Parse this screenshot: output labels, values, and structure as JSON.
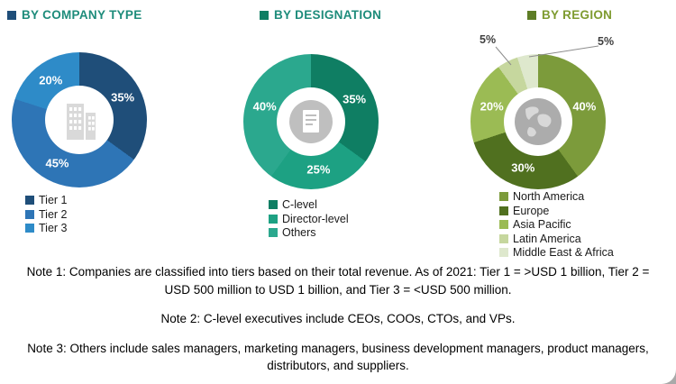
{
  "chart_data": [
    {
      "type": "pie",
      "donut": true,
      "title": "BY COMPANY TYPE",
      "title_color": "#1E8C7B",
      "bullet_color": "#1F4E79",
      "center_icon": "building-icon",
      "categories": [
        "Tier 1",
        "Tier 2",
        "Tier 3"
      ],
      "values": [
        35,
        45,
        20
      ],
      "labels": [
        "35%",
        "45%",
        "20%"
      ],
      "colors": [
        "#1F4E79",
        "#2E75B6",
        "#2E8BC8"
      ],
      "legend_position": "bottom-left"
    },
    {
      "type": "pie",
      "donut": true,
      "title": "BY DESIGNATION",
      "title_color": "#1E8C7B",
      "bullet_color": "#0F7E63",
      "center_icon": "document-icon",
      "categories": [
        "C-level",
        "Director-level",
        "Others"
      ],
      "values": [
        35,
        25,
        40
      ],
      "labels": [
        "35%",
        "25%",
        "40%"
      ],
      "colors": [
        "#0F7E63",
        "#1DA183",
        "#2BA88E"
      ],
      "legend_position": "bottom-left"
    },
    {
      "type": "pie",
      "donut": true,
      "title": "BY REGION",
      "title_color": "#7E9B30",
      "bullet_color": "#5E7D26",
      "center_icon": "globe-icon",
      "categories": [
        "North America",
        "Europe",
        "Asia Pacific",
        "Latin America",
        "Middle East & Africa"
      ],
      "values": [
        40,
        30,
        20,
        5,
        5
      ],
      "labels": [
        "40%",
        "30%",
        "20%",
        "5%",
        "5%"
      ],
      "colors": [
        "#7C9B3B",
        "#50701F",
        "#9BBB54",
        "#C6D79E",
        "#DEE8CD"
      ],
      "outside_labels": [
        false,
        false,
        false,
        true,
        true
      ],
      "legend_position": "bottom-left"
    }
  ],
  "notes": [
    "Note 1: Companies are classified into tiers based on their total revenue. As of 2021: Tier 1 = >USD 1 billion, Tier 2 = USD 500 million to USD 1 billion, and Tier 3 = <USD 500 million.",
    "Note 2: C-level executives include CEOs, COOs, CTOs, and VPs.",
    "Note 3: Others include sales managers, marketing managers, business development managers, product managers, distributors, and suppliers."
  ]
}
